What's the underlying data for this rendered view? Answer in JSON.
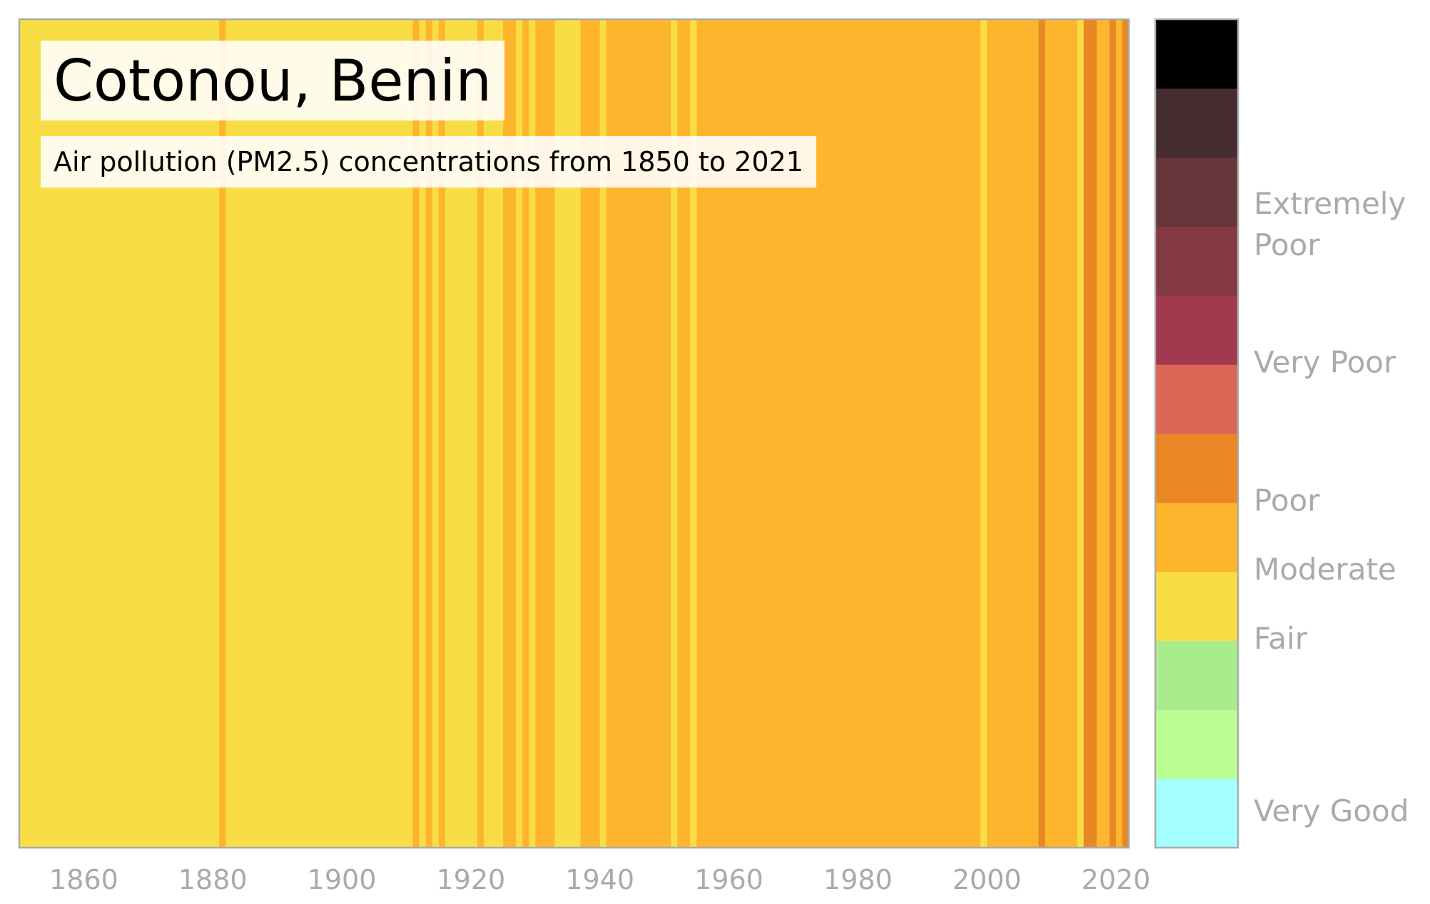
{
  "chart_data": {
    "type": "heatmap",
    "title": "Cotonou, Benin",
    "subtitle": "Air pollution (PM2.5) concentrations from 1850 to 2021",
    "x_range": [
      1850,
      2022
    ],
    "x_ticks": [
      "1860",
      "1880",
      "1900",
      "1920",
      "1940",
      "1960",
      "1980",
      "2000",
      "2020"
    ],
    "x_tick_values": [
      1860,
      1880,
      1900,
      1920,
      1940,
      1960,
      1980,
      2000,
      2020
    ],
    "colorbar": {
      "levels": [
        "#a5fffe",
        "#bbfd93",
        "#a8ec8e",
        "#f8de44",
        "#fdb52d",
        "#e88724",
        "#dc6655",
        "#a2394f",
        "#843841",
        "#663539",
        "#442c2f",
        "#000000"
      ],
      "labels": [
        {
          "text": "Very Good",
          "level": 0.5
        },
        {
          "text": "Fair",
          "level": 3.0
        },
        {
          "text": "Moderate",
          "level": 4.0
        },
        {
          "text": "Poor",
          "level": 5.0
        },
        {
          "text": "Very Poor",
          "level": 7.0
        },
        {
          "text": "Extremely",
          "level": 9.3
        },
        {
          "text": "Poor",
          "level": 8.7
        }
      ]
    },
    "categories": [
      "Fair",
      "Moderate",
      "Poor"
    ],
    "colors": {
      "Fair": "#f8de44",
      "Moderate": "#fdb52d",
      "Poor": "#e88724"
    },
    "segments": [
      {
        "start": 1850,
        "end": 1881,
        "category": "Fair"
      },
      {
        "start": 1881,
        "end": 1882,
        "category": "Moderate"
      },
      {
        "start": 1882,
        "end": 1911,
        "category": "Fair"
      },
      {
        "start": 1911,
        "end": 1912,
        "category": "Moderate"
      },
      {
        "start": 1912,
        "end": 1913,
        "category": "Fair"
      },
      {
        "start": 1913,
        "end": 1914,
        "category": "Moderate"
      },
      {
        "start": 1914,
        "end": 1915,
        "category": "Fair"
      },
      {
        "start": 1915,
        "end": 1916,
        "category": "Moderate"
      },
      {
        "start": 1916,
        "end": 1921,
        "category": "Fair"
      },
      {
        "start": 1921,
        "end": 1922,
        "category": "Moderate"
      },
      {
        "start": 1922,
        "end": 1925,
        "category": "Fair"
      },
      {
        "start": 1925,
        "end": 1927,
        "category": "Moderate"
      },
      {
        "start": 1927,
        "end": 1928,
        "category": "Fair"
      },
      {
        "start": 1928,
        "end": 1929,
        "category": "Moderate"
      },
      {
        "start": 1929,
        "end": 1930,
        "category": "Fair"
      },
      {
        "start": 1930,
        "end": 1933,
        "category": "Moderate"
      },
      {
        "start": 1933,
        "end": 1937,
        "category": "Fair"
      },
      {
        "start": 1937,
        "end": 1940,
        "category": "Moderate"
      },
      {
        "start": 1940,
        "end": 1941,
        "category": "Fair"
      },
      {
        "start": 1941,
        "end": 1951,
        "category": "Moderate"
      },
      {
        "start": 1951,
        "end": 1952,
        "category": "Fair"
      },
      {
        "start": 1952,
        "end": 1954,
        "category": "Moderate"
      },
      {
        "start": 1954,
        "end": 1955,
        "category": "Fair"
      },
      {
        "start": 1955,
        "end": 1999,
        "category": "Moderate"
      },
      {
        "start": 1999,
        "end": 2000,
        "category": "Fair"
      },
      {
        "start": 2000,
        "end": 2008,
        "category": "Moderate"
      },
      {
        "start": 2008,
        "end": 2009,
        "category": "Poor"
      },
      {
        "start": 2009,
        "end": 2014,
        "category": "Moderate"
      },
      {
        "start": 2014,
        "end": 2015,
        "category": "Fair"
      },
      {
        "start": 2015,
        "end": 2017,
        "category": "Poor"
      },
      {
        "start": 2017,
        "end": 2019,
        "category": "Moderate"
      },
      {
        "start": 2019,
        "end": 2020,
        "category": "Poor"
      },
      {
        "start": 2020,
        "end": 2021,
        "category": "Moderate"
      },
      {
        "start": 2021,
        "end": 2022,
        "category": "Poor"
      }
    ]
  }
}
